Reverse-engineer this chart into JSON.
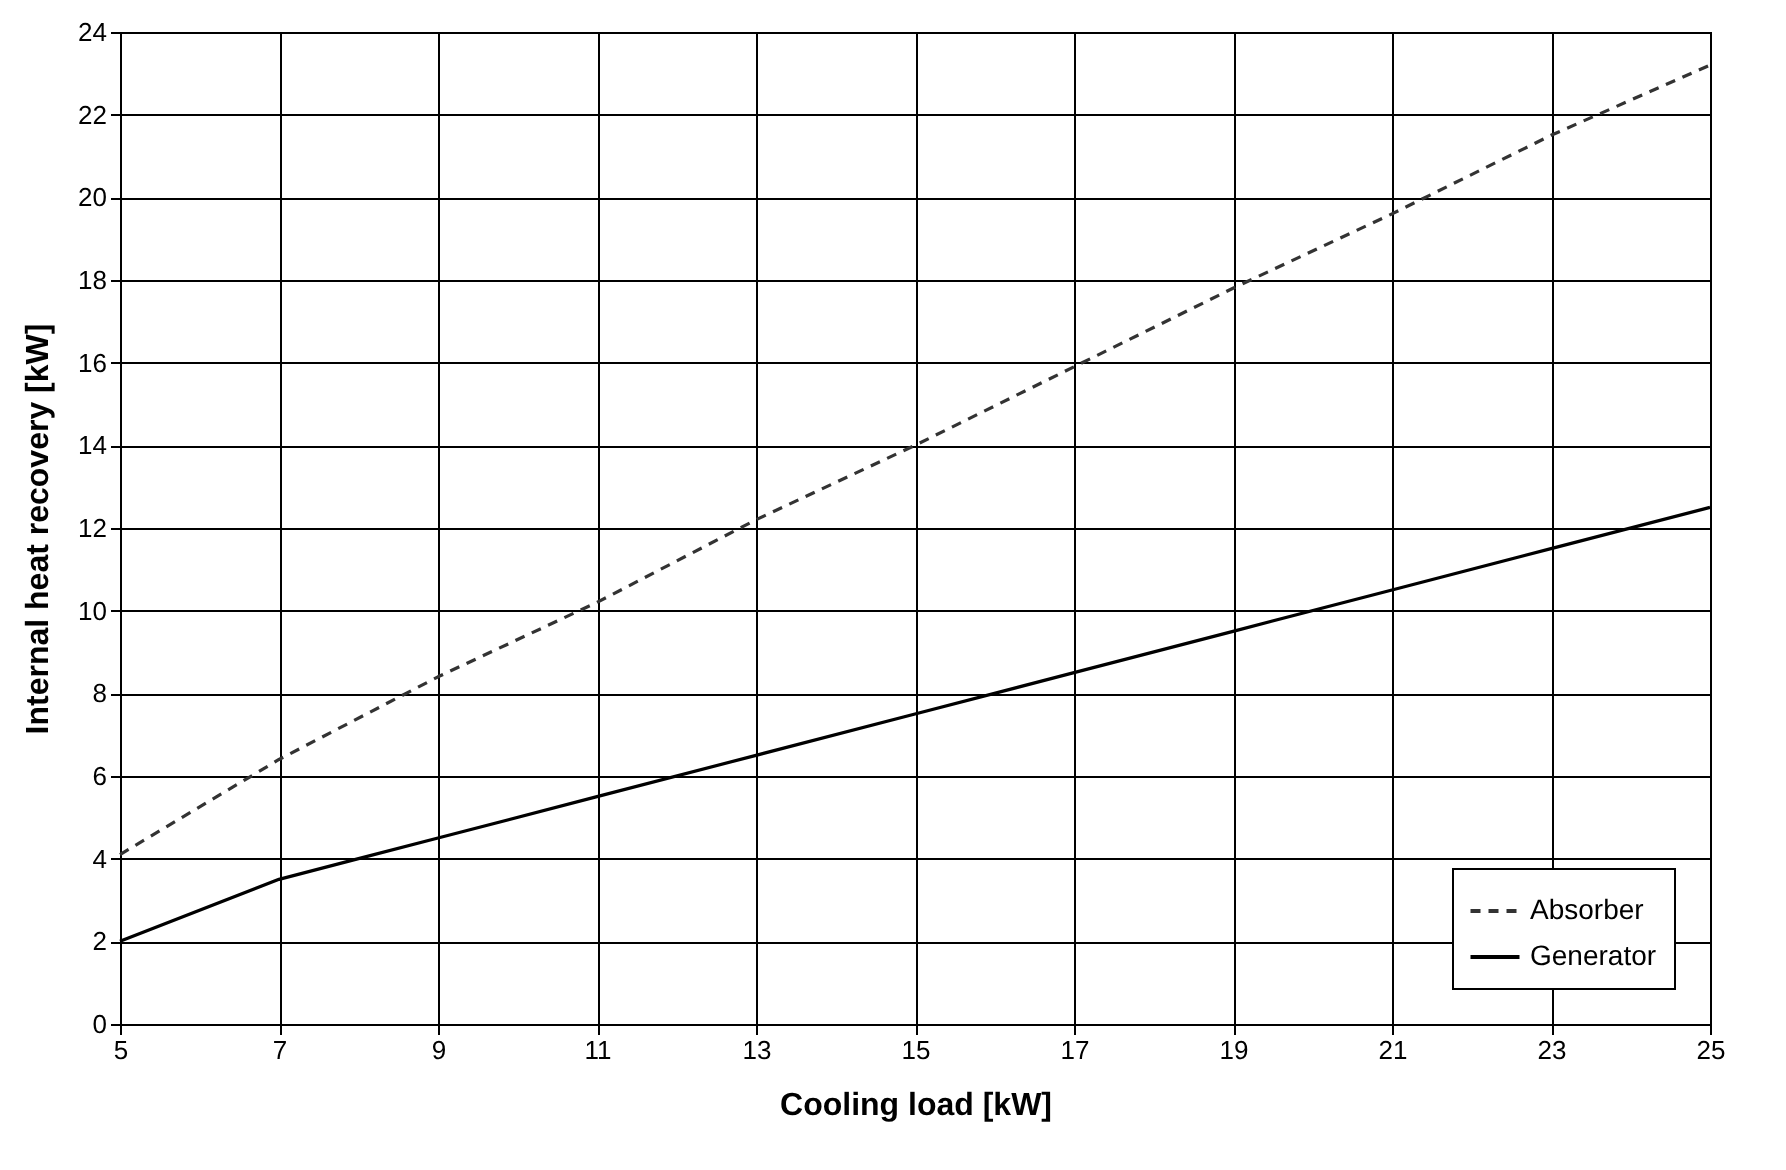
{
  "chart_data": {
    "type": "line",
    "xlabel": "Cooling load   [kW]",
    "ylabel": "Internal heat recovery   [kW]",
    "xlim": [
      5,
      25
    ],
    "xticks": [
      5,
      7,
      9,
      11,
      13,
      15,
      17,
      19,
      21,
      23,
      25
    ],
    "ylim": [
      0,
      24
    ],
    "yticks": [
      0,
      2,
      4,
      6,
      8,
      10,
      12,
      14,
      16,
      18,
      20,
      22,
      24
    ],
    "grid": true,
    "legend": "bottom right",
    "marker": "none",
    "series": [
      {
        "name": "Absorber",
        "color": "#333333",
        "line_style": "dashed",
        "x": [
          5,
          7,
          9,
          11,
          13,
          15,
          17,
          19,
          21,
          23,
          25
        ],
        "values": [
          4.1,
          6.4,
          8.4,
          10.2,
          12.2,
          14.0,
          15.9,
          17.8,
          19.6,
          21.5,
          23.2
        ]
      },
      {
        "name": "Generator",
        "color": "#000000",
        "line_style": "solid",
        "x": [
          5,
          7,
          8,
          9,
          11,
          13,
          15,
          17,
          19,
          21,
          23,
          25
        ],
        "values": [
          2.0,
          3.5,
          4.0,
          4.5,
          5.5,
          6.5,
          7.5,
          8.5,
          9.5,
          10.5,
          11.5,
          12.5
        ]
      }
    ]
  }
}
